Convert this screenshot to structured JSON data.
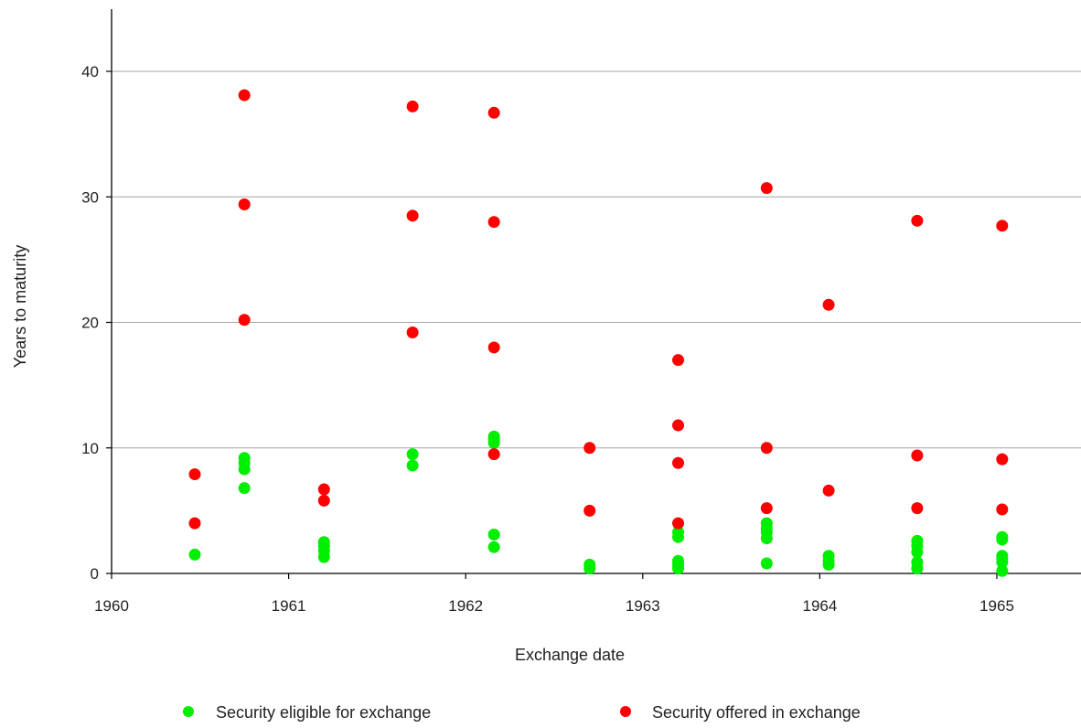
{
  "chart_data": {
    "type": "scatter",
    "title": "",
    "xlabel": "Exchange date",
    "ylabel": "Years to maturity",
    "xlim": [
      1960,
      1965.5
    ],
    "ylim": [
      0,
      45
    ],
    "x_ticks": [
      1960,
      1961,
      1962,
      1963,
      1964,
      1965
    ],
    "y_ticks": [
      0,
      10,
      20,
      30,
      40
    ],
    "y_gridlines": true,
    "legend_position": "bottom",
    "series": [
      {
        "name": "Security eligible for exchange",
        "color": "#00ee00",
        "points": [
          [
            1960.47,
            1.5
          ],
          [
            1960.75,
            6.8
          ],
          [
            1960.75,
            8.3
          ],
          [
            1960.75,
            8.8
          ],
          [
            1960.75,
            9.2
          ],
          [
            1961.2,
            1.3
          ],
          [
            1961.2,
            1.8
          ],
          [
            1961.2,
            2.2
          ],
          [
            1961.2,
            2.5
          ],
          [
            1961.7,
            8.6
          ],
          [
            1961.7,
            9.5
          ],
          [
            1962.16,
            2.1
          ],
          [
            1962.16,
            3.1
          ],
          [
            1962.16,
            10.4
          ],
          [
            1962.16,
            10.7
          ],
          [
            1962.16,
            10.9
          ],
          [
            1962.7,
            0.4
          ],
          [
            1962.7,
            0.7
          ],
          [
            1963.2,
            0.4
          ],
          [
            1963.2,
            0.7
          ],
          [
            1963.2,
            1.0
          ],
          [
            1963.2,
            2.9
          ],
          [
            1963.2,
            3.3
          ],
          [
            1963.7,
            0.8
          ],
          [
            1963.7,
            2.8
          ],
          [
            1963.7,
            3.3
          ],
          [
            1963.7,
            3.6
          ],
          [
            1963.7,
            4.0
          ],
          [
            1964.05,
            0.7
          ],
          [
            1964.05,
            1.0
          ],
          [
            1964.05,
            1.4
          ],
          [
            1964.55,
            0.4
          ],
          [
            1964.55,
            0.9
          ],
          [
            1964.55,
            1.7
          ],
          [
            1964.55,
            2.2
          ],
          [
            1964.55,
            2.6
          ],
          [
            1965.03,
            0.2
          ],
          [
            1965.03,
            0.9
          ],
          [
            1965.03,
            1.2
          ],
          [
            1965.03,
            1.4
          ],
          [
            1965.03,
            2.7
          ],
          [
            1965.03,
            2.9
          ]
        ]
      },
      {
        "name": "Security offered in exchange",
        "color": "#ff0000",
        "points": [
          [
            1960.47,
            4.0
          ],
          [
            1960.47,
            7.9
          ],
          [
            1960.75,
            20.2
          ],
          [
            1960.75,
            29.4
          ],
          [
            1960.75,
            38.1
          ],
          [
            1961.2,
            5.8
          ],
          [
            1961.2,
            6.7
          ],
          [
            1961.7,
            19.2
          ],
          [
            1961.7,
            28.5
          ],
          [
            1961.7,
            37.2
          ],
          [
            1962.16,
            9.5
          ],
          [
            1962.16,
            18.0
          ],
          [
            1962.16,
            28.0
          ],
          [
            1962.16,
            36.7
          ],
          [
            1962.7,
            5.0
          ],
          [
            1962.7,
            10.0
          ],
          [
            1963.2,
            4.0
          ],
          [
            1963.2,
            8.8
          ],
          [
            1963.2,
            11.8
          ],
          [
            1963.2,
            17.0
          ],
          [
            1963.7,
            5.2
          ],
          [
            1963.7,
            10.0
          ],
          [
            1963.7,
            30.7
          ],
          [
            1964.05,
            6.6
          ],
          [
            1964.05,
            21.4
          ],
          [
            1964.55,
            5.2
          ],
          [
            1964.55,
            9.4
          ],
          [
            1964.55,
            28.1
          ],
          [
            1965.03,
            5.1
          ],
          [
            1965.03,
            9.1
          ],
          [
            1965.03,
            27.7
          ]
        ]
      }
    ]
  }
}
